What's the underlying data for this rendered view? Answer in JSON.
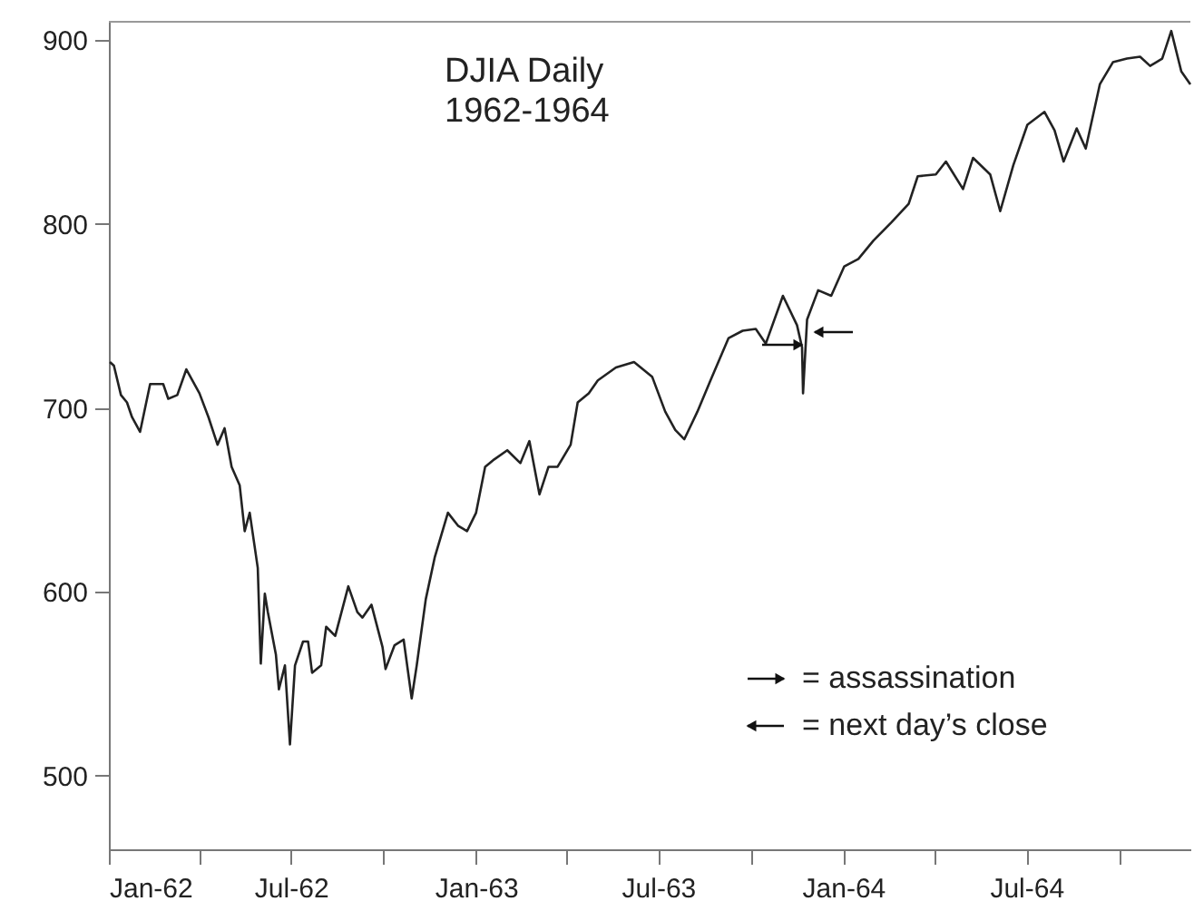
{
  "chart_data": {
    "type": "line",
    "title": "DJIA Daily\n1962-1964",
    "x": [
      "1962-01-02",
      "1962-01-06",
      "1962-01-13",
      "1962-01-19",
      "1962-01-24",
      "1962-02-01",
      "1962-02-11",
      "1962-02-24",
      "1962-03-01",
      "1962-03-10",
      "1962-03-19",
      "1962-04-01",
      "1962-04-10",
      "1962-04-19",
      "1962-04-26",
      "1962-05-03",
      "1962-05-11",
      "1962-05-16",
      "1962-05-21",
      "1962-05-29",
      "1962-06-01",
      "1962-06-05",
      "1962-06-08",
      "1962-06-16",
      "1962-06-19",
      "1962-06-25",
      "1962-06-30",
      "1962-07-05",
      "1962-07-13",
      "1962-07-18",
      "1962-07-22",
      "1962-07-31",
      "1962-08-05",
      "1962-08-14",
      "1962-08-27",
      "1962-09-05",
      "1962-09-10",
      "1962-09-19",
      "1962-09-30",
      "1962-10-03",
      "1962-10-12",
      "1962-10-21",
      "1962-10-29",
      "1962-11-03",
      "1962-11-12",
      "1962-11-21",
      "1962-12-04",
      "1962-12-14",
      "1962-12-23",
      "1963-01-01",
      "1963-01-10",
      "1963-01-19",
      "1963-02-01",
      "1963-02-14",
      "1963-02-23",
      "1963-03-05",
      "1963-03-14",
      "1963-03-23",
      "1963-04-05",
      "1963-04-12",
      "1963-04-23",
      "1963-05-02",
      "1963-05-20",
      "1963-06-07",
      "1963-06-25",
      "1963-07-08",
      "1963-07-18",
      "1963-07-27",
      "1963-08-09",
      "1963-08-22",
      "1963-09-09",
      "1963-09-23",
      "1963-10-06",
      "1963-10-16",
      "1963-11-02",
      "1963-11-16",
      "1963-11-21",
      "1963-11-22",
      "1963-11-26",
      "1963-12-07",
      "1963-12-20",
      "1964-01-02",
      "1964-01-16",
      "1964-01-31",
      "1964-02-18",
      "1964-03-06",
      "1964-03-15",
      "1964-04-02",
      "1964-04-12",
      "1964-04-29",
      "1964-05-09",
      "1964-05-26",
      "1964-06-05",
      "1964-06-18",
      "1964-07-02",
      "1964-07-19",
      "1964-07-29",
      "1964-08-07",
      "1964-08-20",
      "1964-08-29",
      "1964-09-12",
      "1964-09-25",
      "1964-10-09",
      "1964-10-22",
      "1964-11-01",
      "1964-11-13",
      "1964-11-22",
      "1964-12-02",
      "1964-12-11"
    ],
    "series": [
      {
        "color": "#222222",
        "values": [
          725,
          723,
          707,
          703,
          695,
          687,
          713,
          713,
          705,
          707,
          721,
          708,
          695,
          680,
          689,
          668,
          658,
          633,
          643,
          613,
          561,
          599,
          589,
          566,
          547,
          560,
          517,
          560,
          573,
          573,
          556,
          560,
          581,
          576,
          603,
          589,
          586,
          593,
          570,
          558,
          571,
          574,
          542,
          560,
          596,
          619,
          643,
          636,
          633,
          643,
          668,
          672,
          677,
          670,
          682,
          653,
          668,
          668,
          680,
          703,
          708,
          715,
          722,
          725,
          717,
          698,
          688,
          683,
          698,
          715,
          738,
          742,
          743,
          735,
          761,
          745,
          733,
          708,
          748,
          764,
          761,
          777,
          781,
          791,
          801,
          811,
          826,
          827,
          834,
          819,
          836,
          827,
          807,
          832,
          854,
          861,
          851,
          834,
          852,
          841,
          876,
          888,
          890,
          891,
          886,
          890,
          905,
          883,
          876
        ]
      }
    ],
    "xlim": [
      "1962-01-01",
      "1964-12-11"
    ],
    "xticks": [
      {
        "value": "1962-01",
        "label": "Jan-62"
      },
      {
        "value": "1962-04",
        "label": null
      },
      {
        "value": "1962-07",
        "label": "Jul-62"
      },
      {
        "value": "1962-10",
        "label": null
      },
      {
        "value": "1963-01",
        "label": "Jan-63"
      },
      {
        "value": "1963-04",
        "label": null
      },
      {
        "value": "1963-07",
        "label": "Jul-63"
      },
      {
        "value": "1963-10",
        "label": null
      },
      {
        "value": "1964-01",
        "label": "Jan-64"
      },
      {
        "value": "1964-04",
        "label": null
      },
      {
        "value": "1964-07",
        "label": "Jul-64"
      },
      {
        "value": "1964-10",
        "label": null
      }
    ],
    "ylim": [
      460,
      910
    ],
    "yticks": [
      500,
      600,
      700,
      800,
      900
    ],
    "annotations": [
      "= assassination",
      "= next day’s close"
    ],
    "grid": false,
    "line_style": "solid",
    "marker": "none"
  }
}
